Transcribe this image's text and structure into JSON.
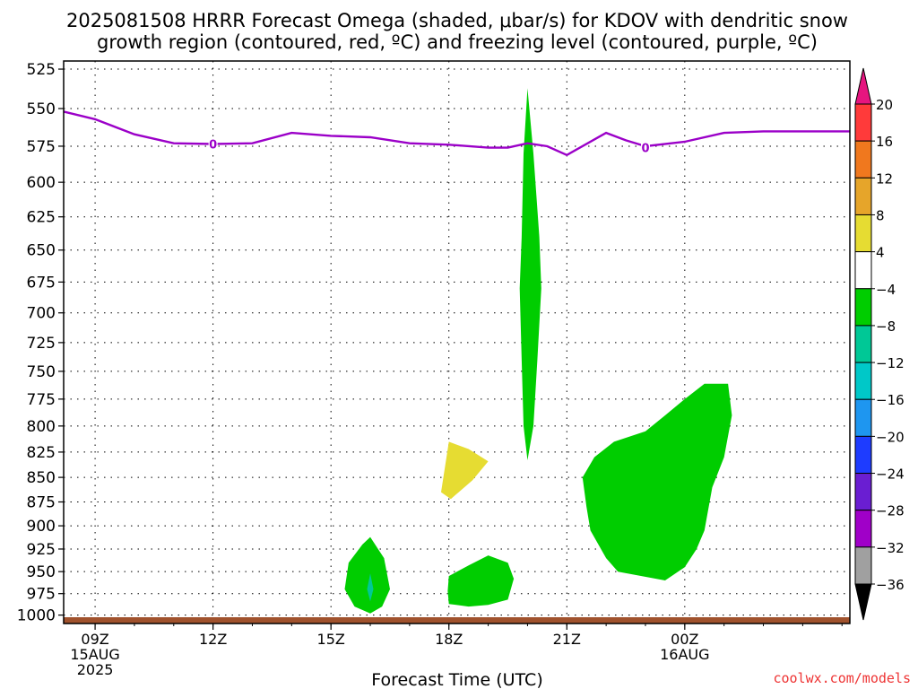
{
  "chart_data": {
    "type": "heatmap",
    "title": "2025081508 HRRR Forecast Omega (shaded, μbar/s) for KDOV with dendritic snow",
    "subtitle": "growth region (contoured, red, ºC) and freezing level (contoured, purple, ºC)",
    "xlabel": "Forecast Time (UTC)",
    "ylabel": "",
    "credit": "coolwx.com/models",
    "x_range_hours": [
      8.2,
      28.2
    ],
    "y_range_hPa": [
      520,
      1010
    ],
    "y_ticks": [
      "525",
      "550",
      "575",
      "600",
      "625",
      "650",
      "675",
      "700",
      "725",
      "750",
      "775",
      "800",
      "825",
      "850",
      "875",
      "900",
      "925",
      "950",
      "975",
      "1000"
    ],
    "x_ticks": [
      {
        "hour": 9,
        "lines": [
          "09Z",
          "15AUG",
          "2025"
        ]
      },
      {
        "hour": 12,
        "lines": [
          "12Z"
        ]
      },
      {
        "hour": 15,
        "lines": [
          "15Z"
        ]
      },
      {
        "hour": 18,
        "lines": [
          "18Z"
        ]
      },
      {
        "hour": 21,
        "lines": [
          "21Z"
        ]
      },
      {
        "hour": 24,
        "lines": [
          "00Z",
          "16AUG"
        ]
      }
    ],
    "grid": true,
    "colorbar": {
      "labels": [
        "20",
        "16",
        "12",
        "8",
        "4",
        "−4",
        "−8",
        "−12",
        "−16",
        "−20",
        "−24",
        "−28",
        "−32",
        "−36"
      ],
      "colors_top_to_bottom": [
        "#ff3a3a",
        "#f0781e",
        "#e6a52a",
        "#e6dc32",
        "#ffffff",
        "#00cd00",
        "#00c896",
        "#00c8c8",
        "#1e96f0",
        "#1e3cff",
        "#6a1ed2",
        "#a000c8",
        "#a0a0a0"
      ],
      "top_arrow_color": "#e6157f",
      "bottom_arrow_color": "#000000"
    },
    "freezing_level": {
      "color": "#9b00c8",
      "points": [
        [
          8.2,
          552
        ],
        [
          9,
          557
        ],
        [
          10,
          567
        ],
        [
          11,
          573
        ],
        [
          12,
          573.5
        ],
        [
          13,
          573
        ],
        [
          14,
          566
        ],
        [
          15,
          568
        ],
        [
          16,
          569
        ],
        [
          17,
          573
        ],
        [
          18,
          574
        ],
        [
          19,
          576
        ],
        [
          19.5,
          576
        ],
        [
          20,
          573
        ],
        [
          20.5,
          575
        ],
        [
          21,
          581
        ],
        [
          22,
          566
        ],
        [
          22.5,
          571
        ],
        [
          23,
          575
        ],
        [
          24,
          572
        ],
        [
          25,
          566
        ],
        [
          26,
          565
        ],
        [
          28.2,
          565
        ]
      ],
      "labels": [
        {
          "hour": 12,
          "hPa": 573.5,
          "text": "0"
        },
        {
          "hour": 23,
          "hPa": 576,
          "text": "0"
        }
      ]
    },
    "surface_ground": {
      "color": "#a0522d",
      "hPa": 1008
    },
    "omega_regions": [
      {
        "class": "-8 to -4",
        "color": "#00cd00",
        "points": [
          [
            20,
            537
          ],
          [
            20.15,
            580
          ],
          [
            20.3,
            640
          ],
          [
            20.35,
            680
          ],
          [
            20.25,
            740
          ],
          [
            20.15,
            800
          ],
          [
            20,
            833
          ],
          [
            19.9,
            800
          ],
          [
            19.85,
            740
          ],
          [
            19.8,
            680
          ],
          [
            19.85,
            640
          ],
          [
            19.9,
            580
          ]
        ]
      },
      {
        "class": "4 to 8",
        "color": "#e6dc32",
        "points": [
          [
            18,
            815
          ],
          [
            18.5,
            822
          ],
          [
            19,
            834
          ],
          [
            18.6,
            853
          ],
          [
            18.25,
            865
          ],
          [
            18.05,
            872
          ],
          [
            17.8,
            865
          ],
          [
            17.9,
            840
          ]
        ]
      },
      {
        "class": "-8 to -4",
        "color": "#00cd00",
        "points": [
          [
            15.8,
            920
          ],
          [
            16,
            912
          ],
          [
            16.35,
            935
          ],
          [
            16.5,
            970
          ],
          [
            16.3,
            990
          ],
          [
            16,
            998
          ],
          [
            15.6,
            990
          ],
          [
            15.35,
            970
          ],
          [
            15.45,
            940
          ]
        ]
      },
      {
        "class": "-12 to -8",
        "color": "#00c896",
        "points": [
          [
            16,
            952
          ],
          [
            16.08,
            970
          ],
          [
            16,
            984
          ],
          [
            15.92,
            970
          ]
        ]
      },
      {
        "class": "-8 to -4",
        "color": "#00cd00",
        "points": [
          [
            18,
            955
          ],
          [
            18.5,
            943
          ],
          [
            19,
            932
          ],
          [
            19.5,
            940
          ],
          [
            19.65,
            958
          ],
          [
            19.5,
            982
          ],
          [
            19,
            988
          ],
          [
            18.5,
            990
          ],
          [
            18,
            987
          ],
          [
            17.97,
            972
          ]
        ]
      },
      {
        "class": "-8 to -4",
        "color": "#00cd00",
        "points": [
          [
            24.5,
            761
          ],
          [
            25.1,
            761
          ],
          [
            25.2,
            790
          ],
          [
            25,
            830
          ],
          [
            24.7,
            860
          ],
          [
            24.5,
            905
          ],
          [
            24.3,
            925
          ],
          [
            24,
            945
          ],
          [
            23.5,
            960
          ],
          [
            22.3,
            950
          ],
          [
            22,
            935
          ],
          [
            21.6,
            905
          ],
          [
            21.5,
            880
          ],
          [
            21.4,
            850
          ],
          [
            21.7,
            830
          ],
          [
            22.2,
            815
          ],
          [
            23,
            805
          ],
          [
            23.5,
            790
          ],
          [
            24,
            775
          ]
        ]
      }
    ]
  }
}
